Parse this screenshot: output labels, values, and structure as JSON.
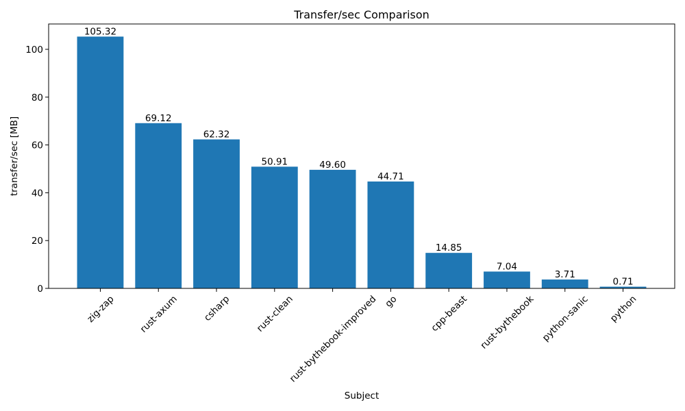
{
  "chart_data": {
    "type": "bar",
    "title": "Transfer/sec Comparison",
    "xlabel": "Subject",
    "ylabel": "transfer/sec [MB]",
    "categories": [
      "zig-zap",
      "rust-axum",
      "csharp",
      "rust-clean",
      "rust-bythebook-improved",
      "go",
      "cpp-beast",
      "rust-bythebook",
      "python-sanic",
      "python"
    ],
    "values": [
      105.32,
      69.12,
      62.32,
      50.91,
      49.6,
      44.71,
      14.85,
      7.04,
      3.71,
      0.71
    ],
    "data_labels": [
      "105.32",
      "69.12",
      "62.32",
      "50.91",
      "49.60",
      "44.71",
      "14.85",
      "7.04",
      "3.71",
      "0.71"
    ],
    "ylim": [
      0,
      110.6
    ],
    "yticks": [
      0,
      20,
      40,
      60,
      80,
      100
    ],
    "xtick_rotation": 45,
    "grid": false,
    "bar_color": "#1f77b4"
  }
}
